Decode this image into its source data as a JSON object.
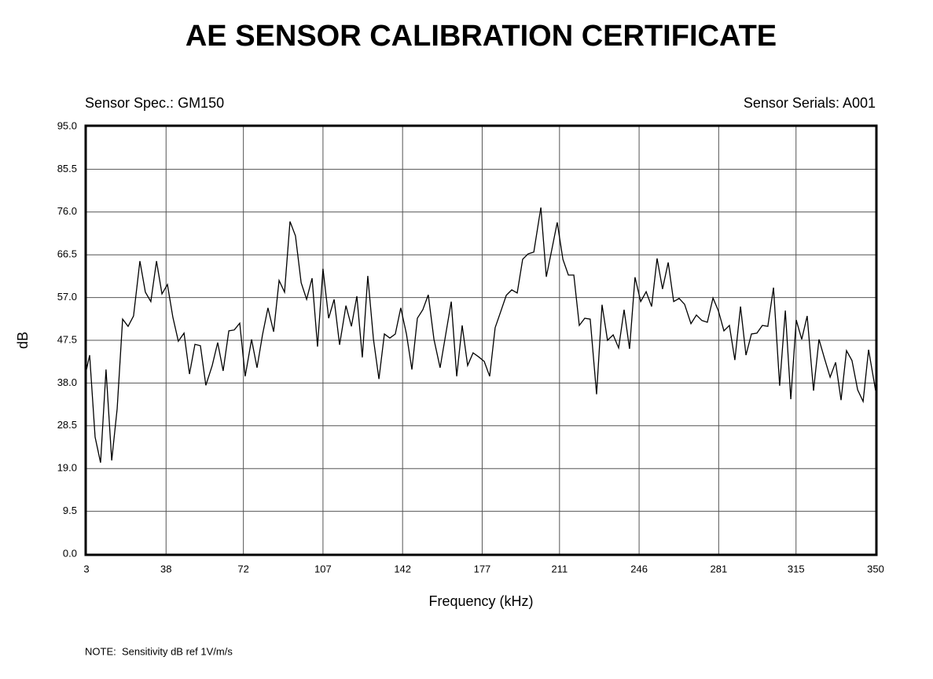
{
  "chart_data": {
    "type": "line",
    "title": "AE SENSOR CALIBRATION CERTIFICATE",
    "sensor_spec": "Sensor Spec.: GM150",
    "sensor_serials": "Sensor Serials: A001",
    "xlabel": "Frequency (kHz)",
    "ylabel": "dB",
    "note": "NOTE:  Sensitivity dB ref 1V/m/s",
    "color": "#000000",
    "grid": true,
    "xlim": [
      3,
      350
    ],
    "ylim": [
      0,
      95
    ],
    "xticks": [
      3,
      38,
      72,
      107,
      142,
      177,
      211,
      246,
      281,
      315,
      350
    ],
    "yticks": [
      {
        "value": 0,
        "label": "0.0"
      },
      9.5,
      {
        "value": 19,
        "label": "19.0"
      },
      28.5,
      {
        "value": 38,
        "label": "38.0"
      },
      47.5,
      {
        "value": 57,
        "label": "57.0"
      },
      66.5,
      {
        "value": 76,
        "label": "76.0"
      },
      85.5,
      {
        "value": 95,
        "label": "95.0"
      }
    ],
    "x": [
      3.0,
      4.4,
      6.8,
      9.2,
      11.6,
      14.1,
      16.5,
      18.9,
      21.3,
      23.7,
      26.5,
      28.9,
      31.3,
      33.8,
      36.2,
      38.6,
      41.0,
      43.4,
      45.9,
      48.3,
      50.7,
      53.1,
      55.5,
      58.3,
      60.7,
      63.1,
      65.6,
      68.0,
      70.4,
      72.8,
      75.6,
      78.0,
      80.4,
      82.8,
      85.3,
      87.7,
      90.1,
      92.5,
      94.9,
      97.4,
      99.8,
      102.2,
      104.6,
      107.0,
      109.5,
      111.9,
      114.3,
      117.1,
      119.5,
      121.9,
      124.3,
      126.7,
      129.2,
      131.6,
      134.0,
      136.4,
      138.8,
      141.2,
      143.7,
      146.1,
      148.5,
      150.9,
      153.3,
      155.8,
      158.5,
      160.9,
      163.4,
      165.8,
      168.2,
      170.6,
      173.0,
      175.5,
      177.9,
      180.3,
      182.7,
      185.1,
      187.6,
      190.0,
      192.4,
      194.8,
      197.2,
      199.7,
      202.8,
      205.2,
      207.6,
      210.0,
      212.5,
      214.9,
      217.3,
      219.7,
      222.1,
      224.5,
      227.3,
      229.7,
      232.1,
      234.6,
      237.0,
      239.4,
      241.8,
      244.2,
      246.7,
      249.1,
      251.5,
      253.9,
      256.3,
      258.8,
      261.2,
      263.6,
      266.0,
      268.8,
      271.2,
      273.6,
      276.0,
      278.5,
      280.9,
      283.3,
      285.7,
      288.1,
      290.6,
      293.0,
      295.4,
      297.8,
      300.2,
      302.6,
      305.1,
      307.8,
      310.3,
      312.7,
      315.1,
      317.5,
      319.9,
      322.7,
      325.1,
      327.5,
      330.0,
      332.4,
      334.8,
      337.2,
      339.6,
      342.1,
      344.5,
      346.9,
      350.0
    ],
    "values": [
      41.0,
      44.2,
      26.0,
      20.3,
      41.0,
      20.8,
      32.3,
      52.2,
      50.6,
      52.9,
      65.1,
      58.2,
      56.1,
      65.1,
      57.8,
      59.9,
      52.6,
      47.3,
      49.1,
      40.0,
      46.6,
      46.3,
      37.5,
      41.9,
      47.0,
      40.7,
      49.6,
      49.8,
      51.3,
      39.5,
      47.7,
      41.4,
      48.7,
      54.7,
      49.4,
      60.8,
      58.2,
      73.9,
      70.7,
      60.3,
      56.6,
      61.3,
      46.1,
      63.4,
      52.4,
      56.6,
      46.5,
      55.2,
      50.6,
      57.3,
      43.7,
      61.8,
      47.7,
      38.9,
      48.9,
      48.0,
      48.9,
      54.7,
      48.9,
      41.0,
      52.4,
      54.3,
      57.6,
      47.7,
      41.4,
      48.6,
      56.1,
      39.5,
      50.8,
      41.9,
      44.7,
      43.8,
      42.8,
      39.5,
      50.3,
      53.8,
      57.5,
      58.7,
      58.0,
      65.5,
      66.7,
      67.1,
      77.0,
      61.6,
      67.6,
      73.7,
      65.5,
      62.0,
      62.0,
      50.8,
      52.4,
      52.2,
      35.5,
      55.4,
      47.5,
      48.7,
      45.8,
      54.3,
      45.6,
      61.5,
      56.1,
      58.3,
      55.0,
      65.7,
      58.9,
      64.8,
      56.1,
      56.8,
      55.5,
      51.2,
      53.1,
      51.9,
      51.5,
      56.9,
      54.0,
      49.6,
      50.8,
      43.1,
      55.0,
      44.2,
      48.9,
      49.1,
      50.8,
      50.6,
      59.2,
      37.4,
      54.1,
      34.4,
      52.0,
      47.7,
      52.9,
      36.3,
      47.7,
      43.5,
      39.3,
      42.6,
      34.2,
      45.2,
      43.0,
      36.5,
      33.9,
      45.4,
      36.3
    ]
  }
}
